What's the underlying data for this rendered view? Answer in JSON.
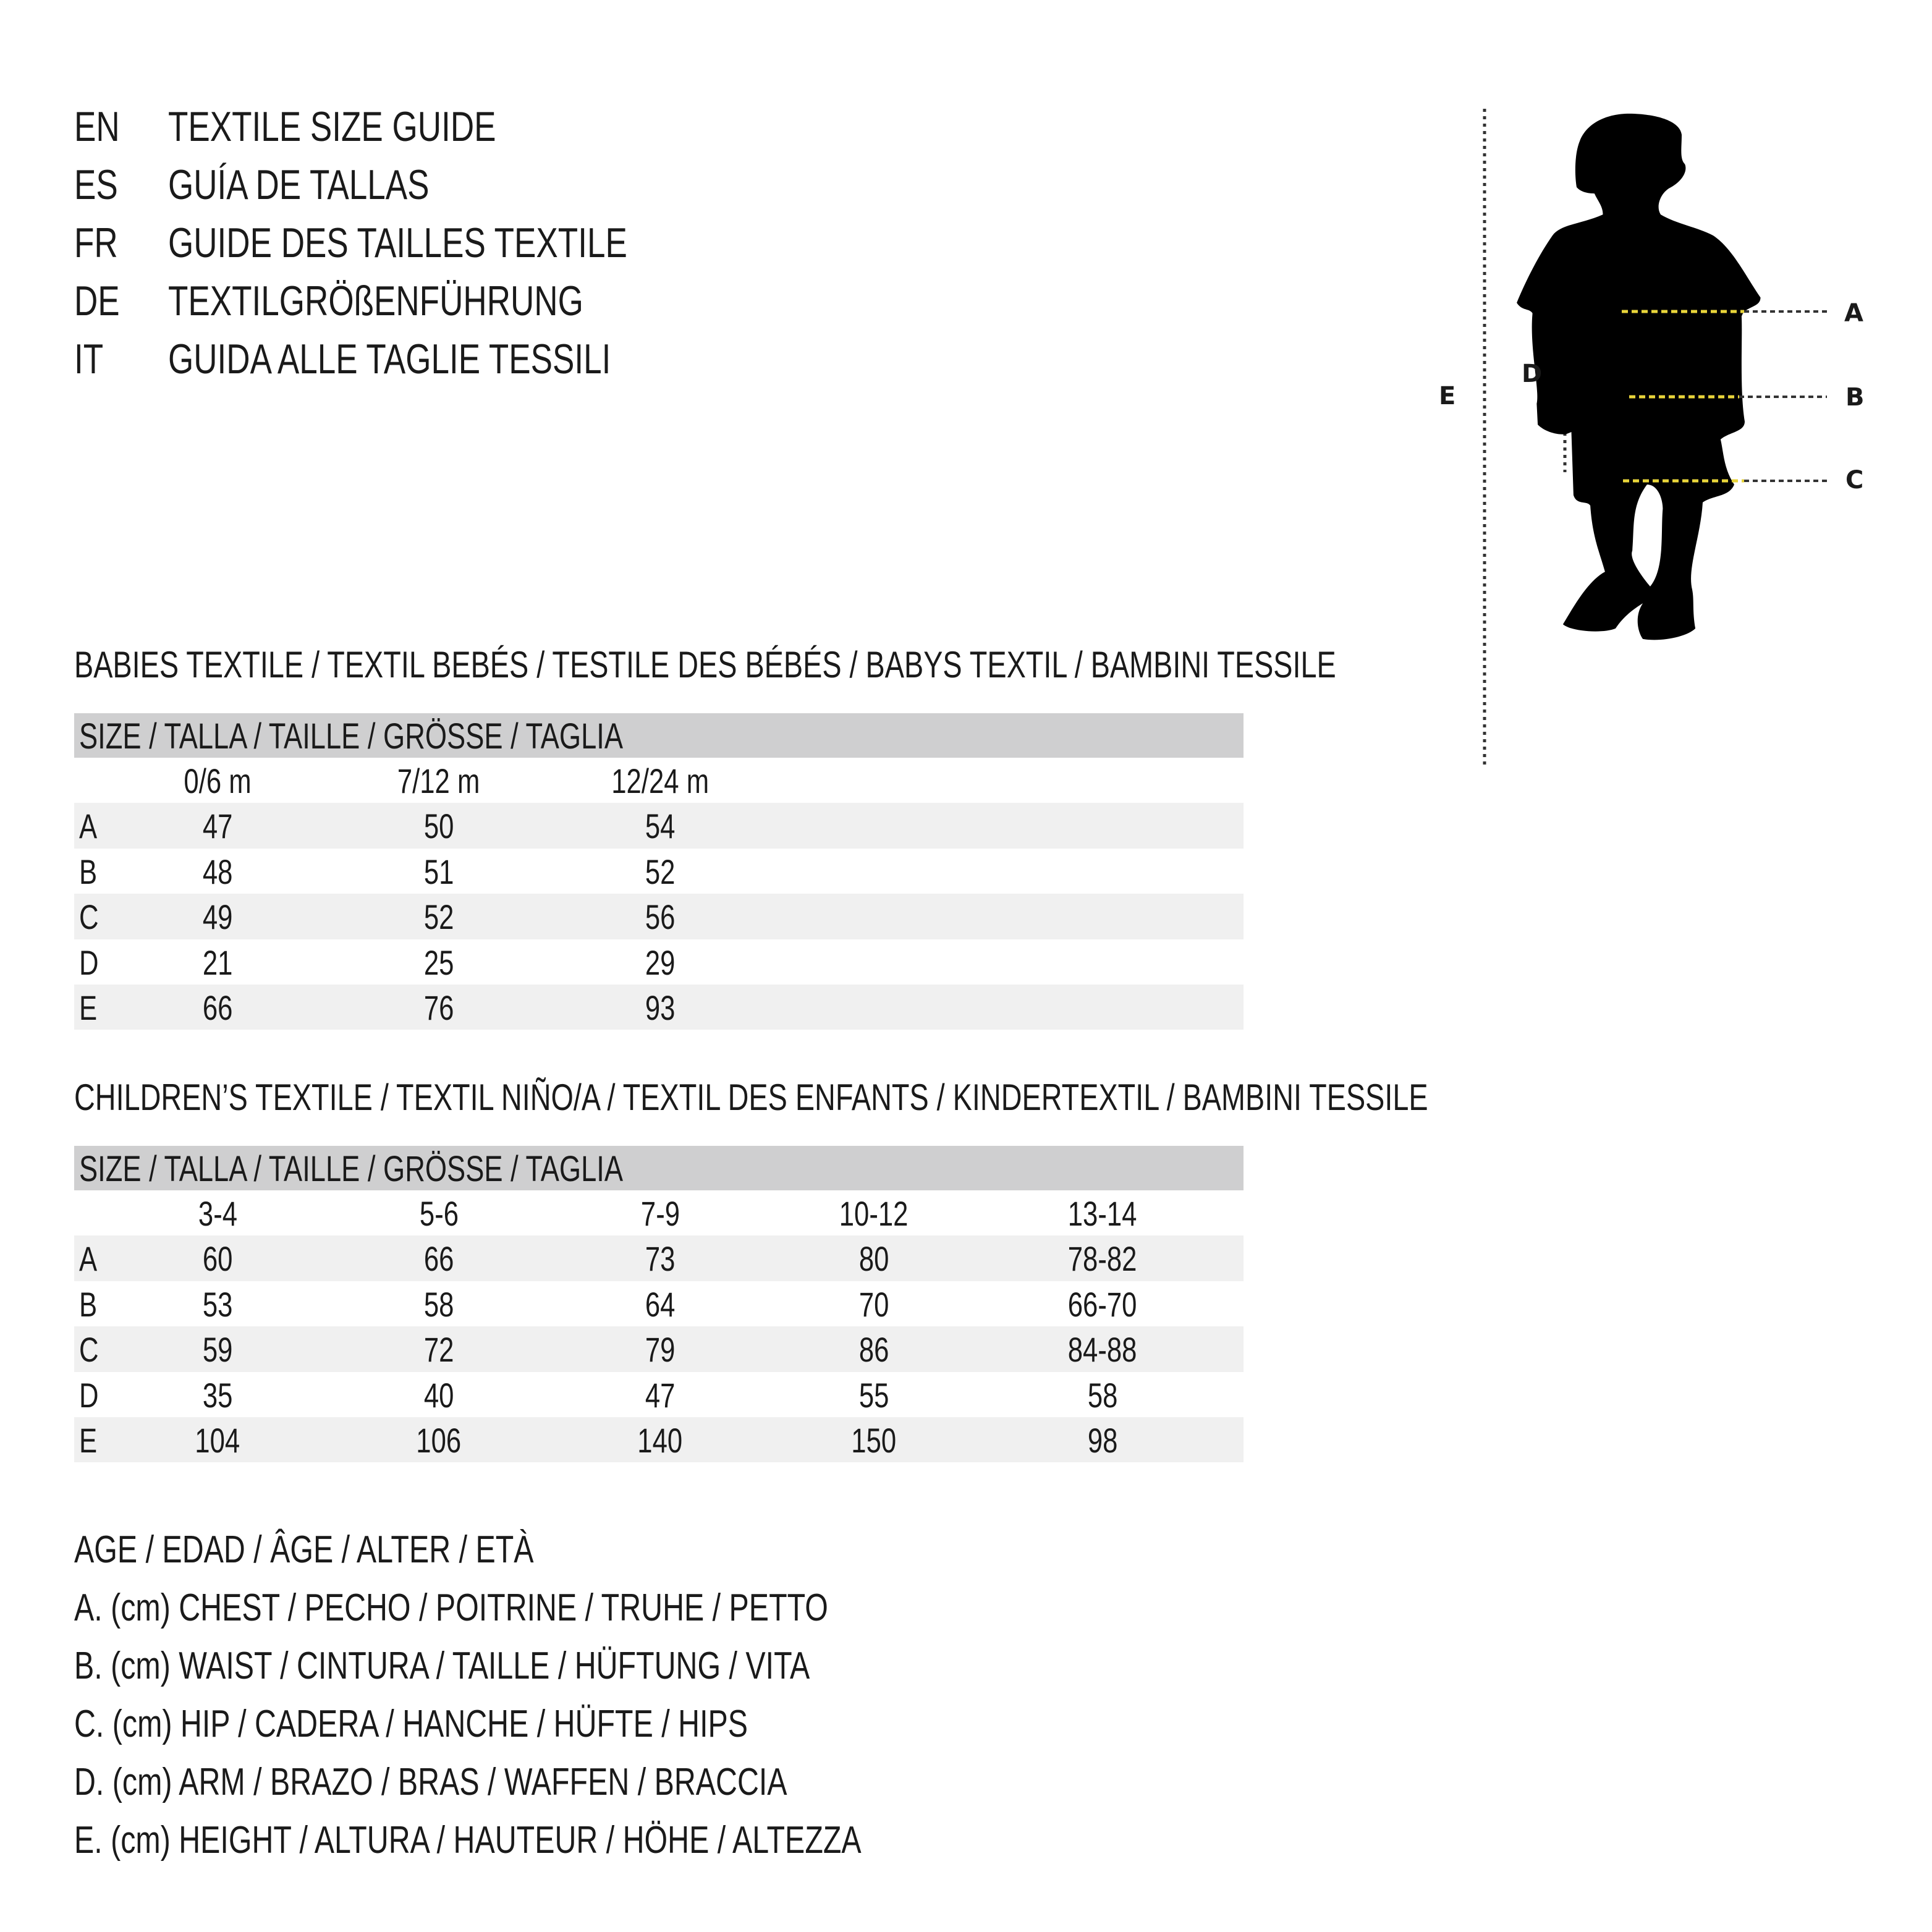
{
  "titles": [
    {
      "code": "EN",
      "text": "TEXTILE SIZE GUIDE"
    },
    {
      "code": "ES",
      "text": "GUÍA DE TALLAS"
    },
    {
      "code": "FR",
      "text": "GUIDE DES TAILLES TEXTILE"
    },
    {
      "code": "DE",
      "text": "TEXTILGRÖßENFÜHRUNG"
    },
    {
      "code": "IT",
      "text": "GUIDA ALLE TAGLIE TESSILI"
    }
  ],
  "babies": {
    "heading": "BABIES TEXTILE / TEXTIL BEBÉS / TESTILE DES BÉBÉS / BABYS TEXTIL / BAMBINI TESSILE",
    "size_header": "SIZE / TALLA / TAILLE / GRÖSSE / TAGLIA",
    "columns": [
      "0/6 m",
      "7/12 m",
      "12/24 m"
    ],
    "rows": [
      {
        "label": "A",
        "values": [
          "47",
          "50",
          "54"
        ]
      },
      {
        "label": "B",
        "values": [
          "48",
          "51",
          "52"
        ]
      },
      {
        "label": "C",
        "values": [
          "49",
          "52",
          "56"
        ]
      },
      {
        "label": "D",
        "values": [
          "21",
          "25",
          "29"
        ]
      },
      {
        "label": "E",
        "values": [
          "66",
          "76",
          "93"
        ]
      }
    ]
  },
  "children": {
    "heading": "CHILDREN’S TEXTILE / TEXTIL NIÑO/A / TEXTIL DES ENFANTS / KINDERTEXTIL / BAMBINI TESSILE",
    "size_header": "SIZE / TALLA / TAILLE / GRÖSSE / TAGLIA",
    "columns": [
      "3-4",
      "5-6",
      "7-9",
      "10-12",
      "13-14"
    ],
    "rows": [
      {
        "label": "A",
        "values": [
          "60",
          "66",
          "73",
          "80",
          "78-82"
        ]
      },
      {
        "label": "B",
        "values": [
          "53",
          "58",
          "64",
          "70",
          "66-70"
        ]
      },
      {
        "label": "C",
        "values": [
          "59",
          "72",
          "79",
          "86",
          "84-88"
        ]
      },
      {
        "label": "D",
        "values": [
          "35",
          "40",
          "47",
          "55",
          "58"
        ]
      },
      {
        "label": "E",
        "values": [
          "104",
          "106",
          "140",
          "150",
          "98"
        ]
      }
    ]
  },
  "legend": [
    "AGE / EDAD / ÂGE / ALTER / ETÀ",
    "A. (cm) CHEST / PECHO / POITRINE / TRUHE / PETTO",
    "B. (cm) WAIST / CINTURA / TAILLE / HÜFTUNG / VITA",
    "C. (cm) HIP / CADERA / HANCHE / HÜFTE / HIPS",
    "D. (cm) ARM / BRAZO / BRAS / WAFFEN / BRACCIA",
    "E. (cm) HEIGHT / ALTURA / HAUTEUR / HÖHE / ALTEZZA"
  ],
  "figure": {
    "labels": {
      "A": "A",
      "B": "B",
      "C": "C",
      "D": "D",
      "E": "E"
    },
    "colors": {
      "silhouette": "#000000",
      "measure_line": "#e8d43a",
      "guide_line": "#333333"
    }
  }
}
